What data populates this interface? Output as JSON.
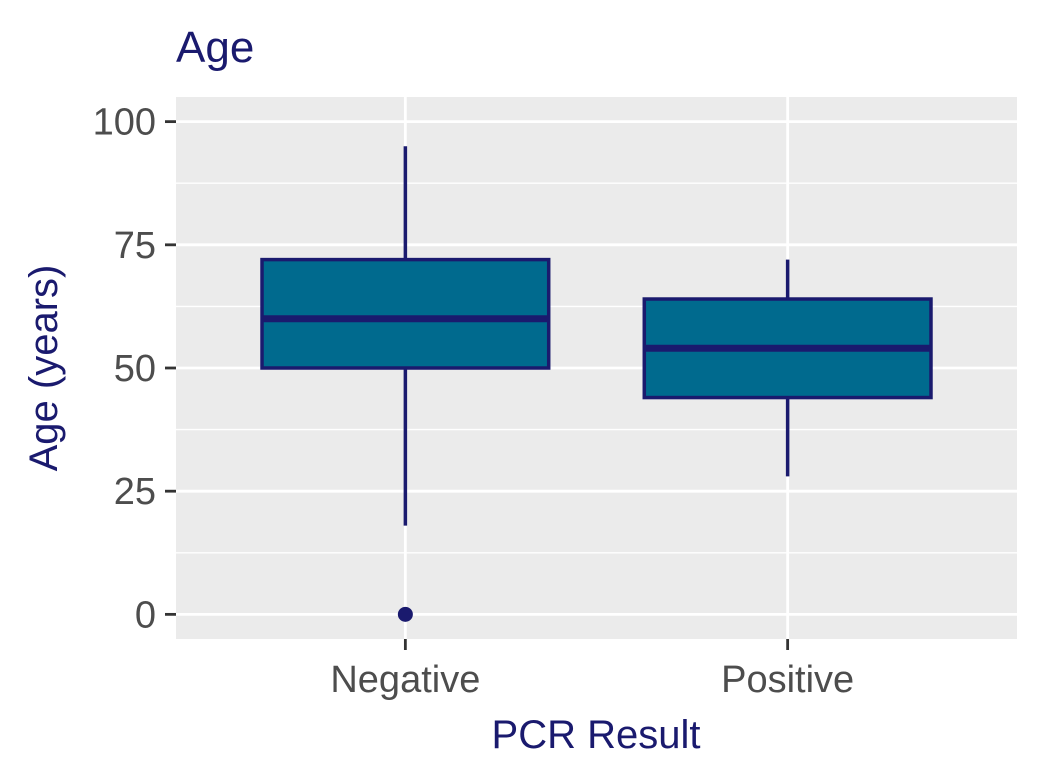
{
  "chart_data": {
    "type": "boxplot",
    "title": "Age",
    "xlabel": "PCR Result",
    "ylabel": "Age (years)",
    "categories": [
      "Negative",
      "Positive"
    ],
    "boxes": [
      {
        "category": "Negative",
        "whisker_low": 18,
        "q1": 50,
        "median": 60,
        "q3": 72,
        "whisker_high": 95,
        "outliers": [
          0
        ]
      },
      {
        "category": "Positive",
        "whisker_low": 28,
        "q1": 44,
        "median": 54,
        "q3": 64,
        "whisker_high": 72,
        "outliers": []
      }
    ],
    "ylim": [
      -5,
      105
    ],
    "yticks": [
      0,
      25,
      50,
      75,
      100
    ],
    "ytick_labels": [
      "0",
      "25",
      "50",
      "75",
      "100"
    ],
    "grid": true,
    "legend": "none",
    "colors": {
      "box_fill": "#006a8e",
      "box_stroke": "#1a1a6e",
      "panel_background": "#ebebeb",
      "grid": "#ffffff",
      "title": "#1a1a6e",
      "tick_label": "#4d4d4d",
      "tick_mark": "#333333"
    }
  }
}
